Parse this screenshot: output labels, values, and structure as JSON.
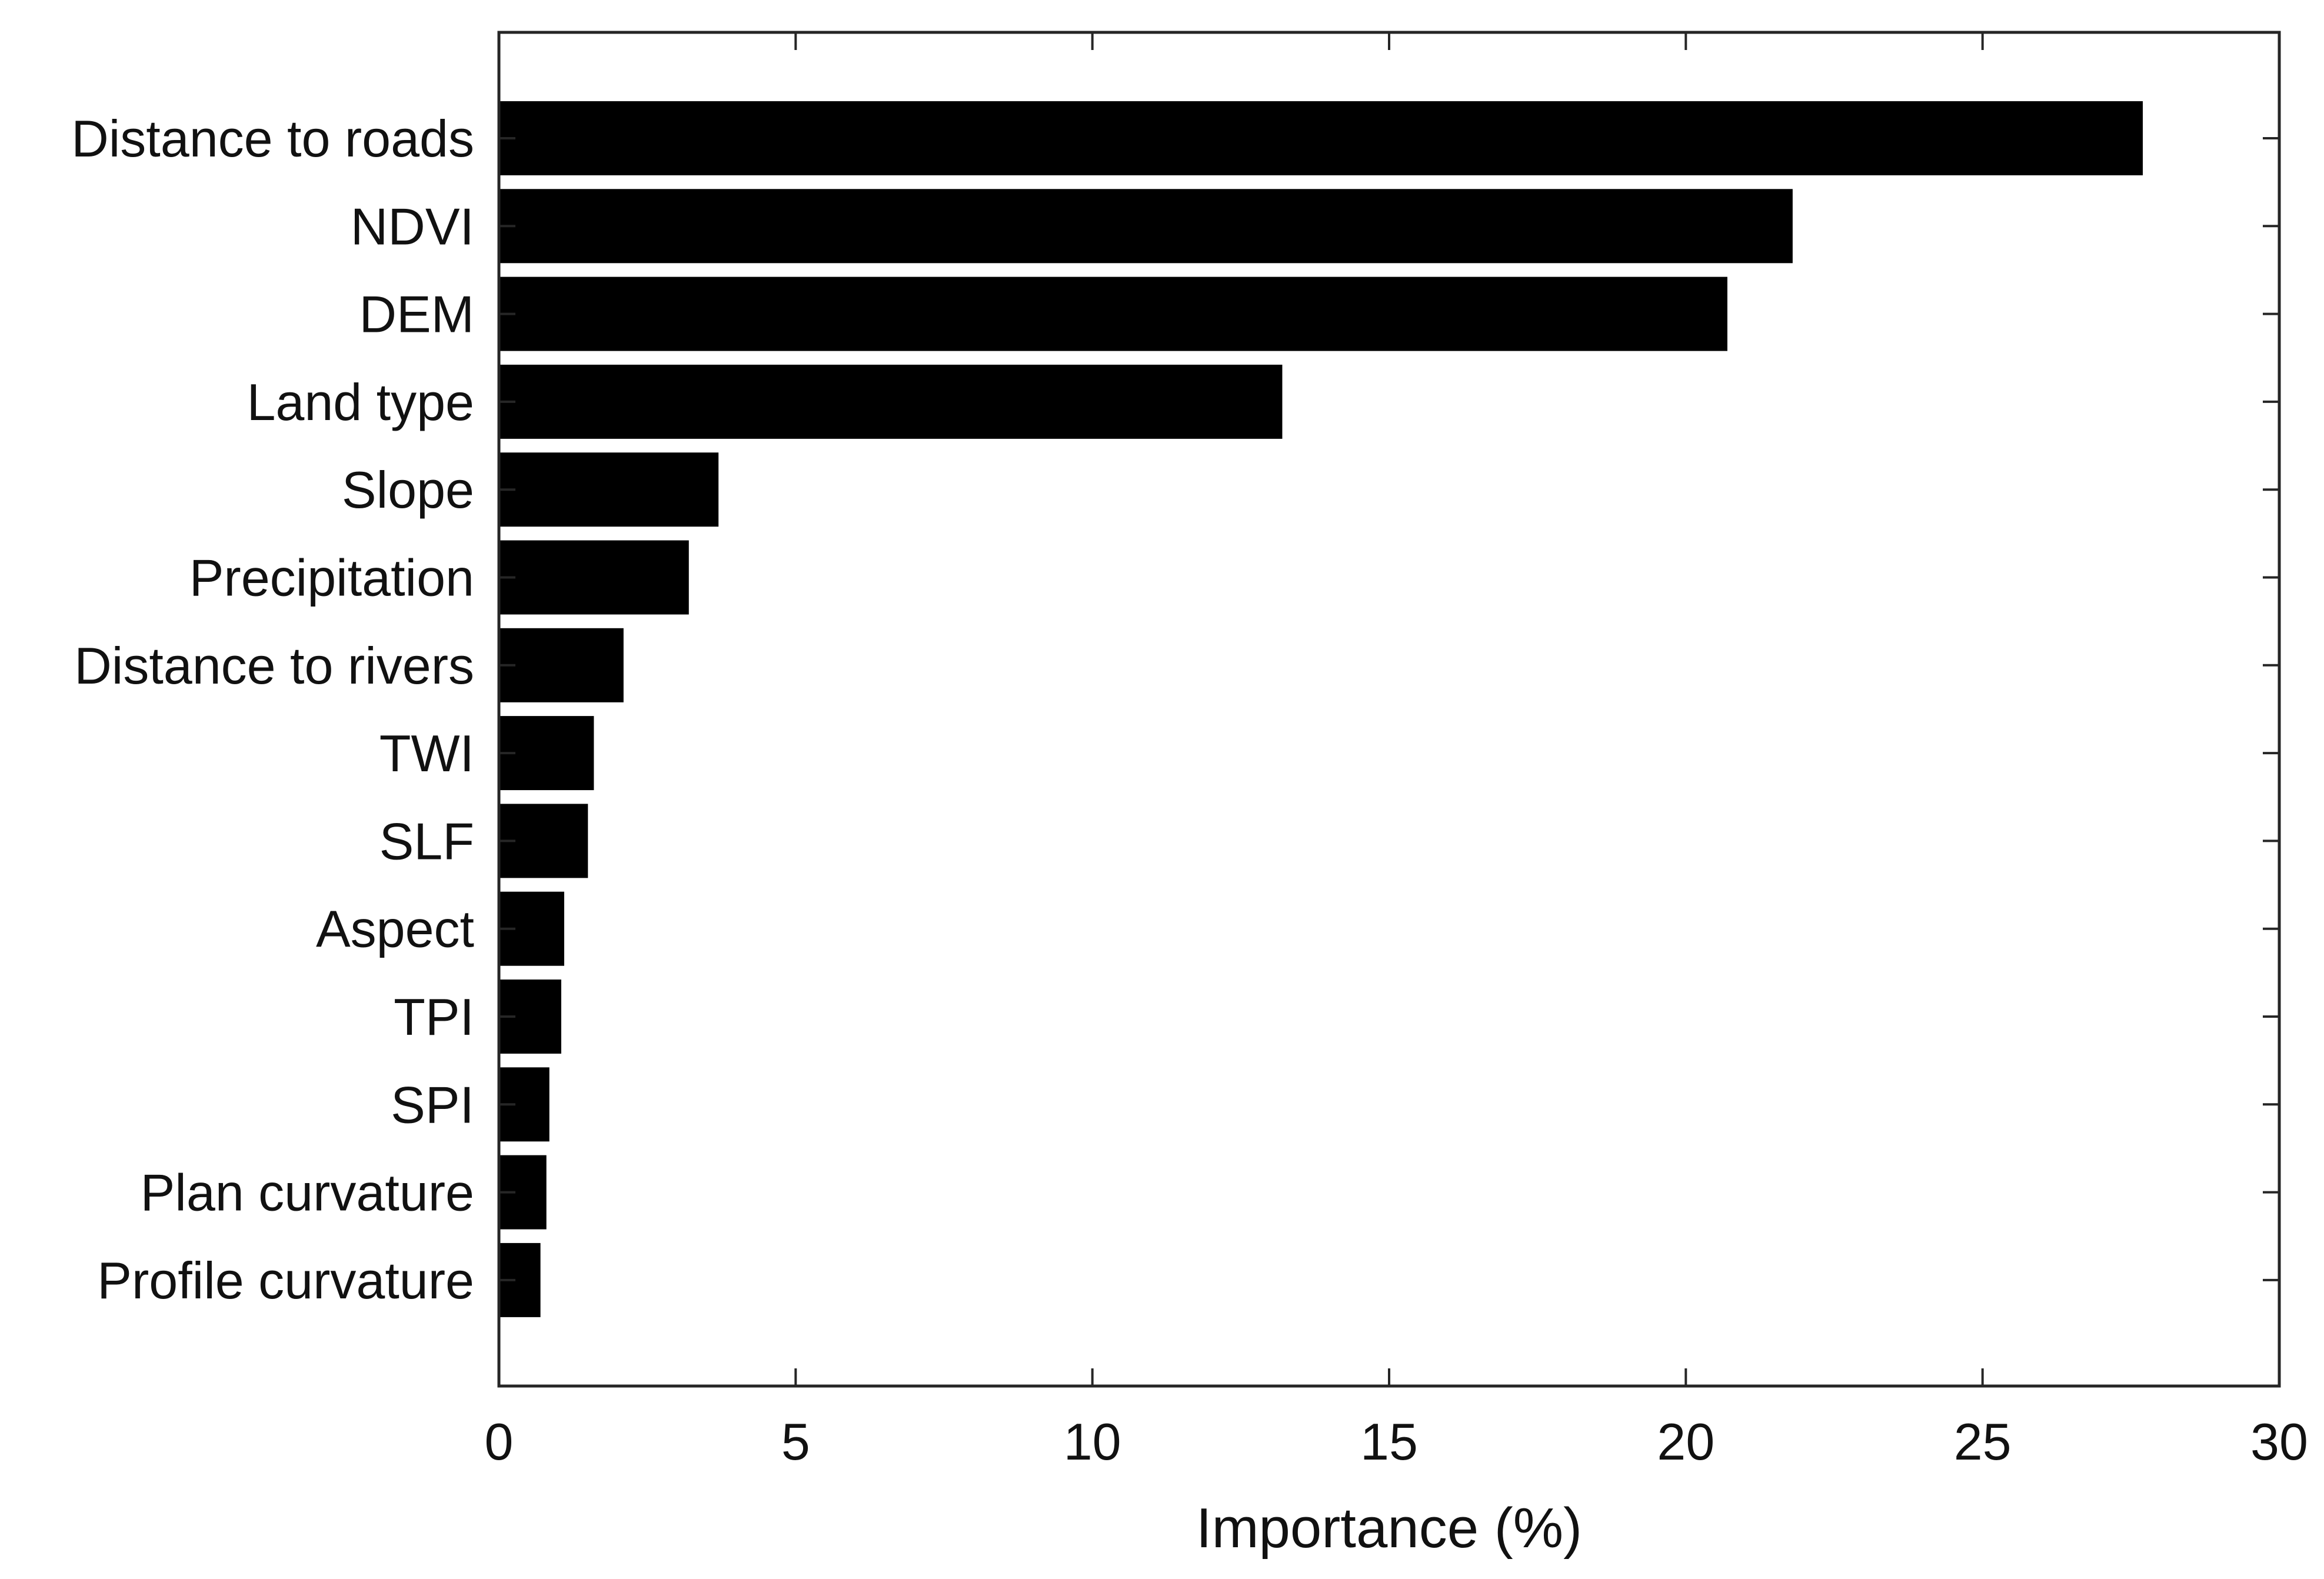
{
  "chart_data": {
    "type": "bar",
    "orientation": "horizontal",
    "title": "",
    "xlabel": "Importance (%)",
    "ylabel": "",
    "xlim": [
      0,
      30
    ],
    "xticks": [
      0,
      5,
      10,
      15,
      20,
      25,
      30
    ],
    "xtick_labels": [
      "0",
      "5",
      "10",
      "15",
      "20",
      "25",
      "30"
    ],
    "grid": false,
    "legend": false,
    "bar_color": "#000000",
    "categories": [
      "Distance to roads",
      "NDVI",
      "DEM",
      "Land type",
      "Slope",
      "Precipitation",
      "Distance to rivers",
      "TWI",
      "SLF",
      "Aspect",
      "TPI",
      "SPI",
      "Plan curvature",
      "Profile curvature"
    ],
    "values": [
      27.7,
      21.8,
      20.7,
      13.2,
      3.7,
      3.2,
      2.1,
      1.6,
      1.5,
      1.1,
      1.05,
      0.85,
      0.8,
      0.7
    ]
  }
}
